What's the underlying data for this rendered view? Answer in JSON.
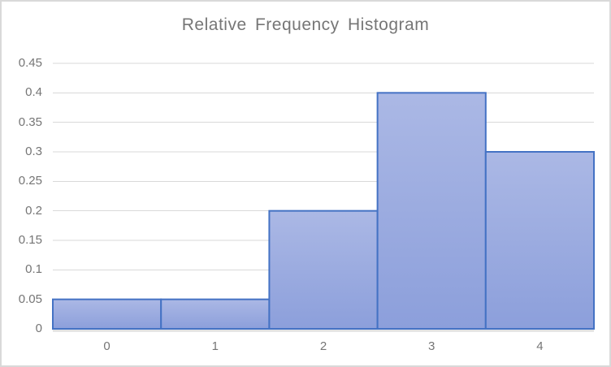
{
  "chart_data": {
    "type": "bar",
    "subtype": "histogram",
    "title": "Relative Frequency Histogram",
    "categories": [
      "0",
      "1",
      "2",
      "3",
      "4"
    ],
    "values": [
      0.05,
      0.05,
      0.2,
      0.4,
      0.3
    ],
    "xlabel": "",
    "ylabel": "",
    "ylim": [
      0,
      0.45
    ],
    "ytick_values": [
      0,
      0.05,
      0.1,
      0.15,
      0.2,
      0.25,
      0.3,
      0.35,
      0.4,
      0.45
    ],
    "ytick_labels": [
      "0",
      "0.05",
      "0.1",
      "0.15",
      "0.2",
      "0.25",
      "0.3",
      "0.35",
      "0.4",
      "0.45"
    ],
    "grid": true,
    "gap_width_percent": 0,
    "legend": "none",
    "colors": {
      "bar_fill_top": "#abb8e5",
      "bar_fill_bottom": "#8c9fdb",
      "bar_border": "#4472c4",
      "gridline": "#d9d9d9",
      "axis_line": "#d9d9d9",
      "title_text": "#767676",
      "tick_text": "#757575",
      "chart_border": "#d9d9d9",
      "background": "#ffffff"
    }
  }
}
